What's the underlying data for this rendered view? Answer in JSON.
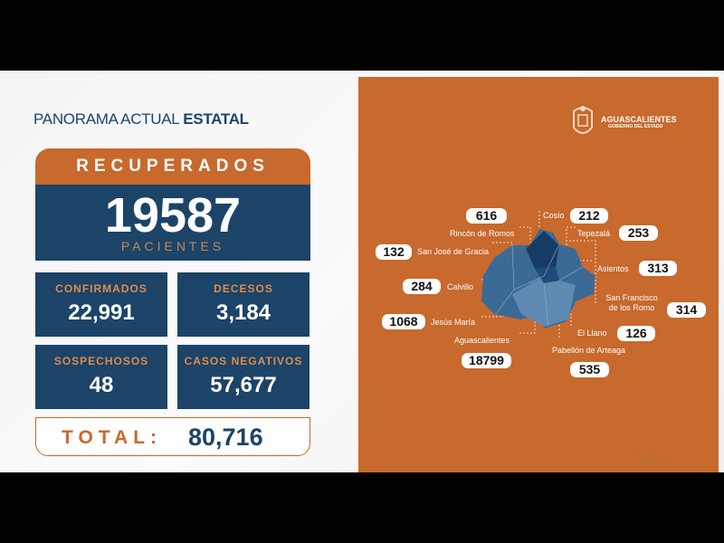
{
  "title": {
    "regular": "PANORAMA ACTUAL ",
    "bold": "ESTATAL"
  },
  "recuperados": {
    "label": "RECUPERADOS",
    "value": "19587",
    "unit": "PACIENTES"
  },
  "stats": [
    {
      "label": "CONFIRMADOS",
      "value": "22,991"
    },
    {
      "label": "DECESOS",
      "value": "3,184"
    },
    {
      "label": "SOSPECHOSOS",
      "value": "48"
    },
    {
      "label": "CASOS NEGATIVOS",
      "value": "57,677"
    }
  ],
  "total": {
    "label": "TOTAL:",
    "value": "80,716"
  },
  "logo": {
    "name": "AGUASCALIENTES",
    "subtitle": "GOBIERNO DEL ESTADO",
    "icon": "coat-of-arms-icon"
  },
  "municipios": [
    {
      "name": "Rincón de Romos",
      "value": "616"
    },
    {
      "name": "Cosío",
      "value": "212"
    },
    {
      "name": "Tepezalá",
      "value": "253"
    },
    {
      "name": "San José de Gracia",
      "value": "132"
    },
    {
      "name": "Asientos",
      "value": "313"
    },
    {
      "name": "Calvillo",
      "value": "284"
    },
    {
      "name": "San Francisco de los Romo",
      "value": "314"
    },
    {
      "name": "Jesús María",
      "value": "1068"
    },
    {
      "name": "El Llano",
      "value": "126"
    },
    {
      "name": "Aguascalientes",
      "value": "18799"
    },
    {
      "name": "Pabellón de Arteaga",
      "value": "535"
    }
  ],
  "page": "3/10",
  "colors": {
    "orange": "#c8692d",
    "navy": "#1b4468"
  }
}
